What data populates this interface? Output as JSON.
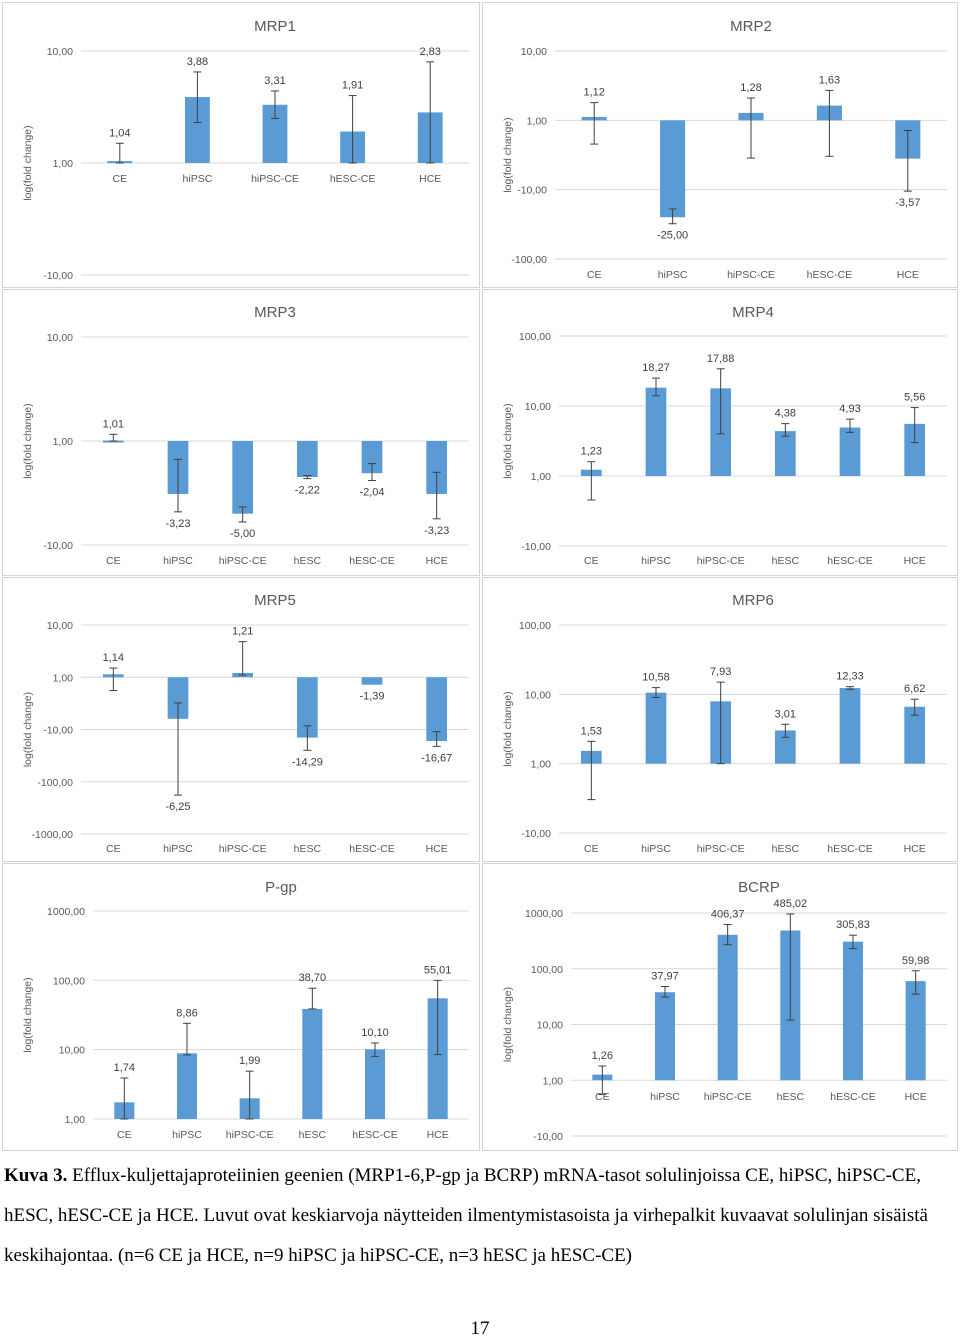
{
  "chart_data": [
    {
      "type": "bar",
      "title": "MRP1",
      "ylabel": "log(fold change)",
      "scale": "log-fold",
      "yticks": [
        10,
        1,
        -10
      ],
      "ytick_labels": [
        "10,00",
        "1,00",
        "-10,00"
      ],
      "categories": [
        "CE",
        "hiPSC",
        "hiPSC-CE",
        "hESC-CE",
        "HCE"
      ],
      "values": [
        1.04,
        3.88,
        3.31,
        1.91,
        2.83
      ],
      "value_labels": [
        "1,04",
        "3,88",
        "3,31",
        "1,91",
        "2,83"
      ],
      "error_low": [
        0.7,
        2.3,
        2.5,
        0.9,
        0.6
      ],
      "error_high": [
        1.5,
        6.5,
        4.4,
        4.0,
        8.0
      ],
      "bar_color": "#5b9bd5"
    },
    {
      "type": "bar",
      "title": "MRP2",
      "ylabel": "log(fold change)",
      "scale": "log-fold",
      "yticks": [
        10,
        1,
        -10,
        -100
      ],
      "ytick_labels": [
        "10,00",
        "1,00",
        "-10,00",
        "-100,00"
      ],
      "categories": [
        "CE",
        "hiPSC",
        "hiPSC-CE",
        "hESC-CE",
        "HCE"
      ],
      "values": [
        1.12,
        -25.0,
        1.28,
        1.63,
        -3.57
      ],
      "value_labels": [
        "1,12",
        "-25,00",
        "1,28",
        "1,63",
        "-3,57"
      ],
      "error_low": [
        -2.2,
        -31.0,
        -3.5,
        -3.3,
        -10.5
      ],
      "error_high": [
        1.8,
        -19.0,
        2.1,
        2.7,
        -1.4
      ],
      "bar_color": "#5b9bd5"
    },
    {
      "type": "bar",
      "title": "MRP3",
      "ylabel": "log(fold change)",
      "scale": "log-fold",
      "yticks": [
        10,
        1,
        -10
      ],
      "ytick_labels": [
        "10,00",
        "1,00",
        "-10,00"
      ],
      "categories": [
        "CE",
        "hiPSC",
        "hiPSC-CE",
        "hESC",
        "hESC-CE",
        "HCE"
      ],
      "values": [
        1.01,
        -3.23,
        -5.0,
        -2.22,
        -2.04,
        -3.23
      ],
      "value_labels": [
        "1,01",
        "-3,23",
        "-5,00",
        "-2,22",
        "-2,04",
        "-3,23"
      ],
      "error_low": [
        0.87,
        -4.8,
        -6.0,
        -2.3,
        -2.4,
        -5.6
      ],
      "error_high": [
        1.16,
        -1.5,
        -4.3,
        -2.15,
        -1.65,
        -2.0
      ],
      "bar_color": "#5b9bd5"
    },
    {
      "type": "bar",
      "title": "MRP4",
      "ylabel": "log(fold change)",
      "scale": "log-fold",
      "yticks": [
        100,
        10,
        1,
        -10
      ],
      "ytick_labels": [
        "100,00",
        "10,00",
        "1,00",
        "-10,00"
      ],
      "categories": [
        "CE",
        "hiPSC",
        "hiPSC-CE",
        "hESC",
        "hESC-CE",
        "HCE"
      ],
      "values": [
        1.23,
        18.27,
        17.88,
        4.38,
        4.93,
        5.56
      ],
      "value_labels": [
        "1,23",
        "18,27",
        "17,88",
        "4,38",
        "4,93",
        "5,56"
      ],
      "error_low": [
        -2.2,
        14.0,
        4.0,
        3.7,
        4.2,
        3.0
      ],
      "error_high": [
        1.6,
        25.0,
        34.0,
        5.6,
        6.5,
        9.5
      ],
      "bar_color": "#5b9bd5"
    },
    {
      "type": "bar",
      "title": "MRP5",
      "ylabel": "log(fold change)",
      "scale": "log-fold",
      "yticks": [
        10,
        1,
        -10,
        -100,
        -1000
      ],
      "ytick_labels": [
        "10,00",
        "1,00",
        "-10,00",
        "-100,00",
        "-1000,00"
      ],
      "categories": [
        "CE",
        "hiPSC",
        "hiPSC-CE",
        "hESC",
        "hESC-CE",
        "HCE"
      ],
      "values": [
        1.14,
        -6.25,
        1.21,
        -14.29,
        -1.39,
        -16.67
      ],
      "value_labels": [
        "1,14",
        "-6,25",
        "1,21",
        "-14,29",
        "-1,39",
        "-16,67"
      ],
      "error_low": [
        -1.8,
        -180.0,
        1.1,
        -25.0,
        -1.39,
        -21.0
      ],
      "error_high": [
        1.5,
        -3.1,
        4.8,
        -8.5,
        -1.39,
        -11.0
      ],
      "bar_color": "#5b9bd5"
    },
    {
      "type": "bar",
      "title": "MRP6",
      "ylabel": "log(fold change)",
      "scale": "log-fold",
      "yticks": [
        100,
        10,
        1,
        -10
      ],
      "ytick_labels": [
        "100,00",
        "10,00",
        "1,00",
        "-10,00"
      ],
      "categories": [
        "CE",
        "hiPSC",
        "hiPSC-CE",
        "hESC",
        "hESC-CE",
        "HCE"
      ],
      "values": [
        1.53,
        10.58,
        7.93,
        3.01,
        12.33,
        6.62
      ],
      "value_labels": [
        "1,53",
        "10,58",
        "7,93",
        "3,01",
        "12,33",
        "6,62"
      ],
      "error_low": [
        -3.3,
        9.0,
        1.0,
        2.4,
        11.8,
        5.0
      ],
      "error_high": [
        2.1,
        12.5,
        15.0,
        3.7,
        12.9,
        8.5
      ],
      "bar_color": "#5b9bd5"
    },
    {
      "type": "bar",
      "title": "P-gp",
      "ylabel": "log(fold change)",
      "scale": "log-fold",
      "yticks": [
        1000,
        100,
        10,
        1
      ],
      "ytick_labels": [
        "1000,00",
        "100,00",
        "10,00",
        "1,00"
      ],
      "categories": [
        "CE",
        "hiPSC",
        "hiPSC-CE",
        "hESC",
        "hESC-CE",
        "HCE"
      ],
      "values": [
        1.74,
        8.86,
        1.99,
        38.7,
        10.1,
        55.01
      ],
      "value_labels": [
        "1,74",
        "8,86",
        "1,99",
        "38,70",
        "10,10",
        "55,01"
      ],
      "error_low": [
        1.0,
        8.4,
        1.0,
        38.7,
        8.0,
        8.5
      ],
      "error_high": [
        3.9,
        24.0,
        4.9,
        77.0,
        12.5,
        100.0
      ],
      "bar_color": "#5b9bd5"
    },
    {
      "type": "bar",
      "title": "BCRP",
      "ylabel": "log(fold change)",
      "scale": "log-fold",
      "yticks": [
        1000,
        100,
        10,
        1,
        -10
      ],
      "ytick_labels": [
        "1000,00",
        "100,00",
        "10,00",
        "1,00",
        "-10,00"
      ],
      "categories": [
        "CE",
        "hiPSC",
        "hiPSC-CE",
        "hESC",
        "hESC-CE",
        "HCE"
      ],
      "values": [
        1.26,
        37.97,
        406.37,
        485.02,
        305.83,
        59.98
      ],
      "value_labels": [
        "1,26",
        "37,97",
        "406,37",
        "485,02",
        "305,83",
        "59,98"
      ],
      "error_low": [
        -1.8,
        31.0,
        270.0,
        12.0,
        230.0,
        35.0
      ],
      "error_high": [
        1.8,
        48.0,
        620.0,
        960.0,
        400.0,
        92.0
      ],
      "bar_color": "#5b9bd5"
    }
  ],
  "caption": {
    "label": "Kuva 3.",
    "text": " Efflux-kuljettajaproteiinien geenien (MRP1-6,P-gp ja BCRP) mRNA-tasot solulinjoissa CE, hiPSC, hiPSC-CE, hESC, hESC-CE ja HCE. Luvut ovat keskiarvoja näytteiden ilmentymistasoista ja virhepalkit kuvaavat solulinjan sisäistä keskihajontaa. (n=6 CE ja HCE, n=9 hiPSC ja hiPSC-CE, n=3 hESC ja hESC-CE)"
  },
  "page_number": "17"
}
